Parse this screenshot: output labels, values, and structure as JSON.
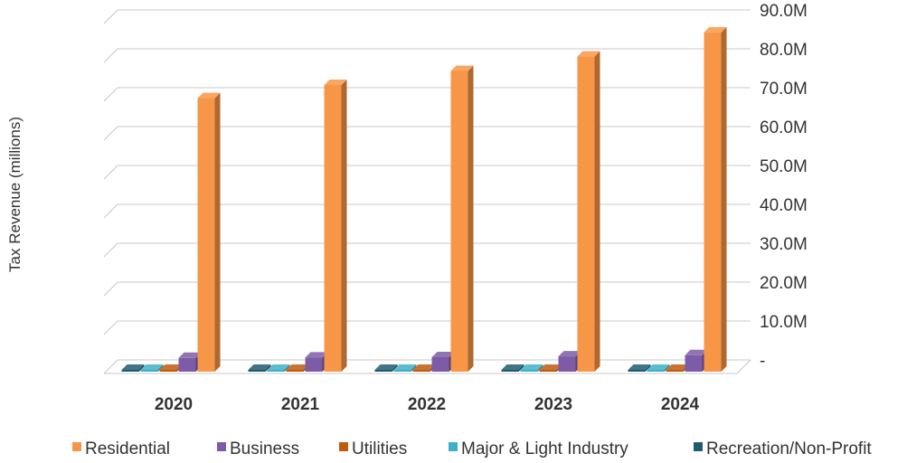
{
  "chart_data": {
    "type": "bar",
    "style": "3d-clustered-column",
    "title": "",
    "xlabel": "",
    "ylabel": "Tax Revenue (millions)",
    "categories": [
      "2020",
      "2021",
      "2022",
      "2023",
      "2024"
    ],
    "ytick_labels": [
      "-",
      "10.0M",
      "20.0M",
      "30.0M",
      "40.0M",
      "50.0M",
      "60.0M",
      "70.0M",
      "80.0M",
      "90.0M"
    ],
    "ylim": [
      0,
      90
    ],
    "grid": true,
    "y_axis_side": "right",
    "legend_position": "bottom",
    "series": [
      {
        "name": "Recreation/Non-Profit",
        "color": "#1F5C70",
        "values": [
          0.1,
          0.1,
          0.1,
          0.1,
          0.1
        ]
      },
      {
        "name": "Major & Light Industry",
        "color": "#3DB0C6",
        "values": [
          0.1,
          0.1,
          0.1,
          0.1,
          0.1
        ]
      },
      {
        "name": "Utilities",
        "color": "#C05A0E",
        "values": [
          0.2,
          0.2,
          0.2,
          0.2,
          0.2
        ]
      },
      {
        "name": "Business",
        "color": "#7D5BA6",
        "values": [
          4.0,
          4.1,
          4.2,
          4.4,
          4.7
        ]
      },
      {
        "name": "Residential",
        "color": "#F79646",
        "values": [
          70.8,
          74.2,
          77.8,
          81.5,
          87.7
        ]
      }
    ],
    "legend_order": [
      "Residential",
      "Business",
      "Utilities",
      "Major & Light Industry",
      "Recreation/Non-Profit"
    ]
  }
}
